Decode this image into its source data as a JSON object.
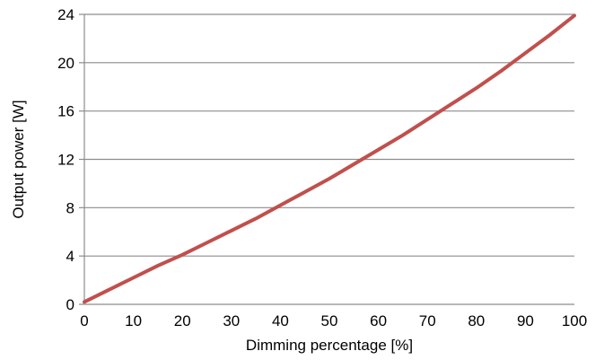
{
  "chart_data": {
    "type": "line",
    "title": "",
    "xlabel": "Dimming percentage [%]",
    "ylabel": "Output power [W]",
    "xlim": [
      0,
      100
    ],
    "ylim": [
      0,
      24
    ],
    "xticks": [
      0,
      10,
      20,
      30,
      40,
      50,
      60,
      70,
      80,
      90,
      100
    ],
    "yticks": [
      0,
      4,
      8,
      12,
      16,
      20,
      24
    ],
    "grid": "horizontal",
    "legend": "none",
    "series": [
      {
        "color": "#c0504d",
        "x": [
          0,
          5,
          10,
          15,
          20,
          25,
          30,
          35,
          40,
          45,
          50,
          55,
          60,
          65,
          70,
          75,
          80,
          85,
          90,
          95,
          100
        ],
        "y": [
          0.2,
          1.2,
          2.2,
          3.2,
          4.1,
          5.1,
          6.1,
          7.1,
          8.2,
          9.3,
          10.4,
          11.6,
          12.8,
          14.0,
          15.3,
          16.6,
          17.9,
          19.3,
          20.8,
          22.3,
          23.9
        ]
      }
    ]
  }
}
